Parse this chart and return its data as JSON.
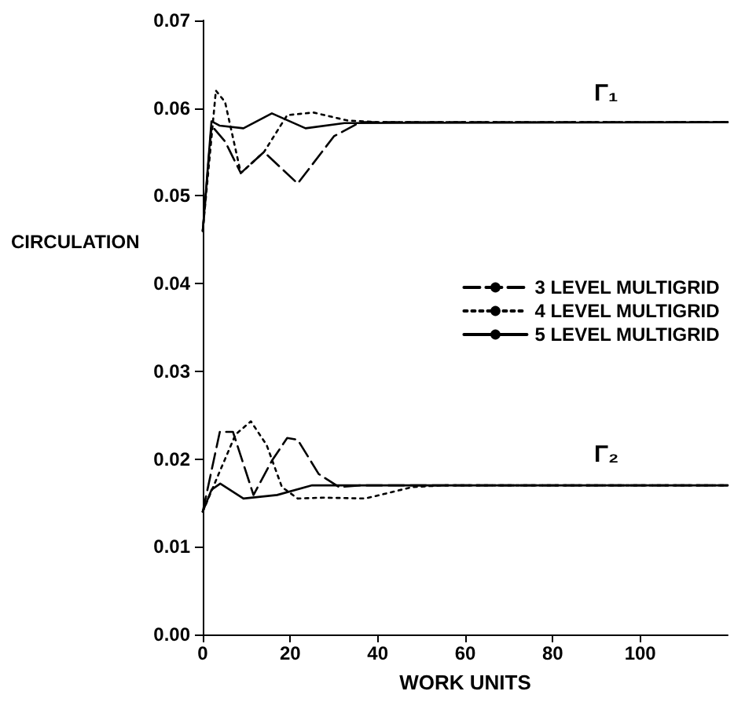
{
  "chart_data": {
    "type": "line",
    "xlabel": "WORK UNITS",
    "ylabel": "CIRCULATION",
    "xlim": [
      0,
      120
    ],
    "xticks": [
      0,
      20,
      40,
      60,
      80,
      100
    ],
    "ylim": [
      0,
      0.07
    ],
    "yticks": [
      {
        "value": 0,
        "label": "0.00"
      },
      {
        "value": 0.01,
        "label": "0.01"
      },
      {
        "value": 0.02,
        "label": "0.02"
      },
      {
        "value": 0.03,
        "label": "0.03"
      },
      {
        "value": 0.04,
        "label": "0.04"
      },
      {
        "value": 0.05,
        "label": "0.05"
      },
      {
        "value": 0.06,
        "label": "0.06"
      },
      {
        "value": 0.07,
        "label": "0.07"
      }
    ],
    "grid": false,
    "legend": "right",
    "marker": "none",
    "annotations": [
      "Γ₁",
      "Γ₂"
    ],
    "series": [
      {
        "name": "3 LEVEL MULTIGRID",
        "color": "#000000",
        "line_style": "dashed",
        "x": [
          0,
          2,
          5.1,
          8.7,
          14,
          21.7,
          30,
          36,
          120
        ],
        "values": [
          0.046,
          0.058,
          0.0562,
          0.0526,
          0.055,
          0.0514,
          0.0568,
          0.0584,
          0.0584
        ]
      },
      {
        "name": "4 LEVEL MULTIGRID",
        "color": "#000000",
        "line_style": "dotted",
        "x": [
          0,
          3,
          5.1,
          8.7,
          14,
          19.3,
          25.3,
          33,
          40,
          120
        ],
        "values": [
          0.046,
          0.062,
          0.0607,
          0.0526,
          0.055,
          0.0592,
          0.0595,
          0.0586,
          0.0584,
          0.0584
        ]
      },
      {
        "name": "5 LEVEL MULTIGRID",
        "color": "#000000",
        "line_style": "solid",
        "x": [
          0,
          2,
          3.9,
          9.3,
          15.8,
          23.5,
          32.4,
          120
        ],
        "values": [
          0.046,
          0.0585,
          0.058,
          0.0577,
          0.0594,
          0.0577,
          0.0583,
          0.0584
        ]
      },
      {
        "color": "#000000",
        "line_style": "dashed",
        "x": [
          0,
          3.9,
          6.9,
          11.6,
          15.8,
          19.3,
          21.7,
          26.5,
          31.2,
          36,
          120
        ],
        "values": [
          0.014,
          0.0231,
          0.0231,
          0.0159,
          0.0198,
          0.0224,
          0.0222,
          0.0183,
          0.0168,
          0.017,
          0.017
        ]
      },
      {
        "color": "#000000",
        "line_style": "dotted",
        "x": [
          0,
          3.9,
          7.5,
          11,
          14.6,
          18.1,
          21.7,
          27.6,
          37.1,
          43,
          47.8,
          55,
          120
        ],
        "values": [
          0.014,
          0.0186,
          0.0228,
          0.0243,
          0.0216,
          0.0168,
          0.0155,
          0.0156,
          0.0155,
          0.0162,
          0.0168,
          0.017,
          0.017
        ]
      },
      {
        "color": "#000000",
        "line_style": "solid",
        "x": [
          0,
          2,
          4,
          9.3,
          17,
          25,
          120
        ],
        "values": [
          0.014,
          0.0165,
          0.0172,
          0.0155,
          0.0159,
          0.017,
          0.017
        ]
      }
    ]
  }
}
